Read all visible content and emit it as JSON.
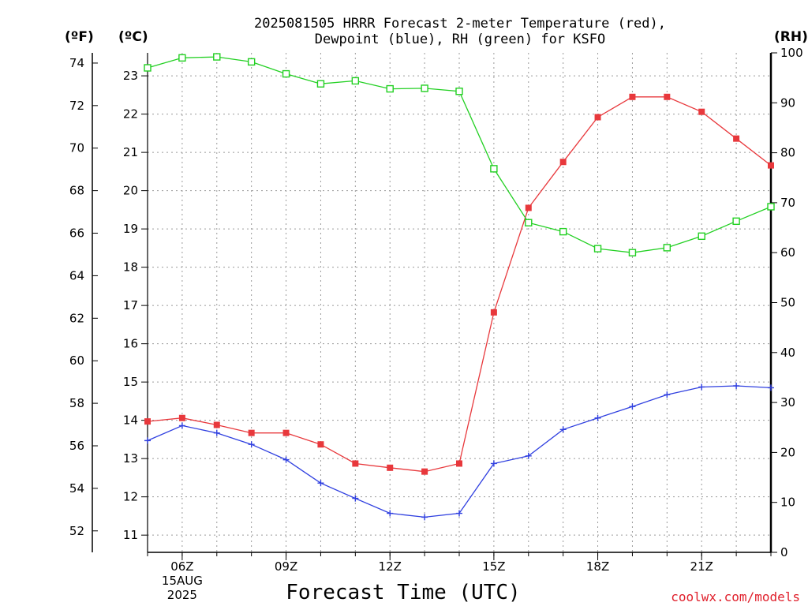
{
  "chart_data": {
    "type": "line",
    "title_lines": [
      "2025081505 HRRR Forecast 2-meter Temperature (red),",
      "Dewpoint (blue), RH (green) for KSFO"
    ],
    "xlabel": "Forecast Time (UTC)",
    "credit": "coolwx.com/models",
    "units": {
      "f": "(ºF)",
      "c": "(ºC)",
      "rh": "(RH)"
    },
    "x_hours": [
      5,
      6,
      7,
      8,
      9,
      10,
      11,
      12,
      13,
      14,
      15,
      16,
      17,
      18,
      19,
      20,
      21,
      22,
      23
    ],
    "x_range": [
      5,
      23
    ],
    "x_ticks": [
      {
        "hour": 6,
        "label": "06Z",
        "sub": [
          "15AUG",
          "2025"
        ]
      },
      {
        "hour": 9,
        "label": "09Z",
        "sub": []
      },
      {
        "hour": 12,
        "label": "12Z",
        "sub": []
      },
      {
        "hour": 15,
        "label": "15Z",
        "sub": []
      },
      {
        "hour": 18,
        "label": "18Z",
        "sub": []
      },
      {
        "hour": 21,
        "label": "21Z",
        "sub": []
      }
    ],
    "c_range": [
      10.55,
      23.6
    ],
    "c_ticks": [
      11,
      12,
      13,
      14,
      15,
      16,
      17,
      18,
      19,
      20,
      21,
      22,
      23
    ],
    "f_ticks": [
      52,
      54,
      56,
      58,
      60,
      62,
      64,
      66,
      68,
      70,
      72,
      74
    ],
    "rh_range": [
      0,
      100
    ],
    "rh_ticks": [
      0,
      10,
      20,
      30,
      40,
      50,
      60,
      70,
      80,
      90,
      100
    ],
    "grid": true,
    "series": [
      {
        "name": "Temperature",
        "axis": "c",
        "color": "#e8383c",
        "marker": "filled-square",
        "values": [
          13.97,
          14.06,
          13.88,
          13.67,
          13.67,
          13.37,
          12.87,
          12.76,
          12.66,
          12.87,
          16.82,
          19.55,
          20.75,
          21.92,
          22.45,
          22.45,
          22.06,
          21.36,
          20.66
        ]
      },
      {
        "name": "Dewpoint",
        "axis": "c",
        "color": "#3040e0",
        "marker": "plus",
        "values": [
          13.47,
          13.86,
          13.67,
          13.37,
          12.97,
          12.36,
          11.96,
          11.57,
          11.47,
          11.57,
          12.87,
          13.07,
          13.76,
          14.06,
          14.36,
          14.67,
          14.87,
          14.9,
          14.85
        ]
      },
      {
        "name": "RH",
        "axis": "rh",
        "color": "#22d022",
        "marker": "open-square",
        "values": [
          97.0,
          99.0,
          99.2,
          98.2,
          95.8,
          93.8,
          94.4,
          92.8,
          92.9,
          92.3,
          76.8,
          66.0,
          64.2,
          60.8,
          60.0,
          61.0,
          63.3,
          66.3,
          69.2
        ]
      }
    ]
  }
}
